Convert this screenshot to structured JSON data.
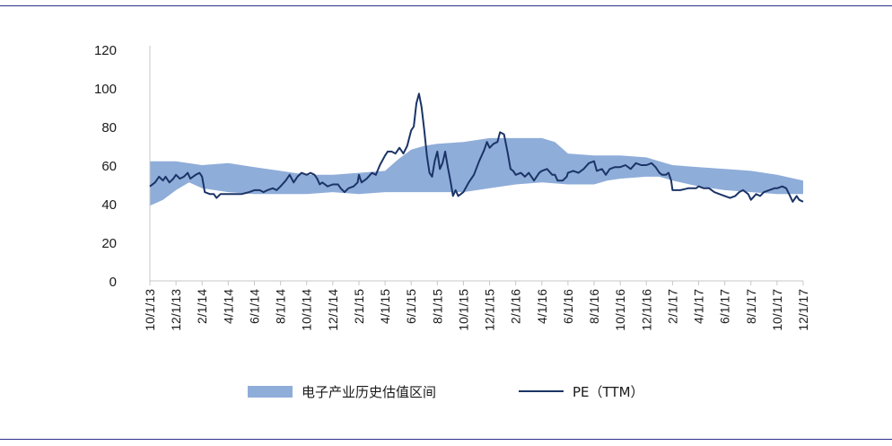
{
  "chart_data": {
    "type": "area",
    "title": "",
    "xlabel": "",
    "ylabel": "",
    "ylim": [
      0,
      120
    ],
    "yticks": [
      0,
      20,
      40,
      60,
      80,
      100,
      120
    ],
    "grid": false,
    "legend_position": "bottom",
    "x_tick_labels": [
      "10/1/13",
      "12/1/13",
      "2/1/14",
      "4/1/14",
      "6/1/14",
      "8/1/14",
      "10/1/14",
      "12/1/14",
      "2/1/15",
      "4/1/15",
      "6/1/15",
      "8/1/15",
      "10/1/15",
      "12/1/15",
      "2/1/16",
      "4/1/16",
      "6/1/16",
      "8/1/16",
      "10/1/16",
      "12/1/16",
      "2/1/17",
      "4/1/17",
      "6/1/17",
      "8/1/17",
      "10/1/17",
      "12/1/17"
    ],
    "band": {
      "name": "电子产业历史估值区间",
      "color": "#8fadd9",
      "upper": [
        [
          0,
          62
        ],
        [
          1,
          62
        ],
        [
          2,
          60
        ],
        [
          3,
          61
        ],
        [
          4,
          59
        ],
        [
          5,
          57
        ],
        [
          6,
          55
        ],
        [
          7,
          55
        ],
        [
          8,
          56
        ],
        [
          9,
          57
        ],
        [
          9.5,
          63
        ],
        [
          10,
          68
        ],
        [
          10.5,
          70
        ],
        [
          11,
          71
        ],
        [
          12,
          72
        ],
        [
          13,
          74
        ],
        [
          14,
          74
        ],
        [
          15,
          74
        ],
        [
          15.5,
          72
        ],
        [
          16,
          66
        ],
        [
          17,
          65
        ],
        [
          18,
          65
        ],
        [
          19,
          64
        ],
        [
          19.5,
          62
        ],
        [
          20,
          60
        ],
        [
          21,
          59
        ],
        [
          22,
          58
        ],
        [
          23,
          57
        ],
        [
          24,
          55
        ],
        [
          25,
          52
        ]
      ],
      "lower": [
        [
          0,
          39
        ],
        [
          0.5,
          42
        ],
        [
          1,
          47
        ],
        [
          1.5,
          51
        ],
        [
          2,
          48
        ],
        [
          3,
          46
        ],
        [
          4,
          45
        ],
        [
          5,
          45
        ],
        [
          6,
          45
        ],
        [
          7,
          46
        ],
        [
          8,
          45
        ],
        [
          9,
          46
        ],
        [
          10,
          46
        ],
        [
          11,
          46
        ],
        [
          12,
          46
        ],
        [
          13,
          48
        ],
        [
          14,
          50
        ],
        [
          15,
          51
        ],
        [
          16,
          50
        ],
        [
          17,
          50
        ],
        [
          17.5,
          52
        ],
        [
          18,
          53
        ],
        [
          19,
          54
        ],
        [
          19.5,
          54
        ],
        [
          20,
          52
        ],
        [
          21,
          49
        ],
        [
          22,
          47
        ],
        [
          23,
          46
        ],
        [
          24,
          45
        ],
        [
          25,
          45
        ]
      ]
    },
    "series": [
      {
        "name": "PE（TTM）",
        "color": "#1b3467",
        "points": [
          [
            0,
            49
          ],
          [
            0.2,
            51
          ],
          [
            0.35,
            54
          ],
          [
            0.5,
            52
          ],
          [
            0.6,
            54
          ],
          [
            0.75,
            51
          ],
          [
            0.9,
            53
          ],
          [
            1,
            55
          ],
          [
            1.15,
            53
          ],
          [
            1.3,
            54
          ],
          [
            1.45,
            56
          ],
          [
            1.55,
            53
          ],
          [
            1.75,
            55
          ],
          [
            1.9,
            56
          ],
          [
            2,
            54
          ],
          [
            2.1,
            46
          ],
          [
            2.3,
            45
          ],
          [
            2.45,
            45
          ],
          [
            2.55,
            43
          ],
          [
            2.7,
            45
          ],
          [
            3,
            45
          ],
          [
            3.2,
            45
          ],
          [
            3.5,
            45
          ],
          [
            3.8,
            46
          ],
          [
            4,
            47
          ],
          [
            4.2,
            47
          ],
          [
            4.35,
            46
          ],
          [
            4.5,
            47
          ],
          [
            4.7,
            48
          ],
          [
            4.85,
            47
          ],
          [
            5,
            49
          ],
          [
            5.2,
            52
          ],
          [
            5.35,
            55
          ],
          [
            5.5,
            51
          ],
          [
            5.65,
            54
          ],
          [
            5.8,
            56
          ],
          [
            6,
            55
          ],
          [
            6.15,
            56
          ],
          [
            6.3,
            55
          ],
          [
            6.4,
            53
          ],
          [
            6.5,
            50
          ],
          [
            6.6,
            51
          ],
          [
            6.8,
            49
          ],
          [
            7,
            50
          ],
          [
            7.2,
            50
          ],
          [
            7.3,
            48
          ],
          [
            7.45,
            46
          ],
          [
            7.6,
            48
          ],
          [
            7.8,
            49
          ],
          [
            7.95,
            51
          ],
          [
            8,
            55
          ],
          [
            8.1,
            51
          ],
          [
            8.3,
            53
          ],
          [
            8.5,
            56
          ],
          [
            8.65,
            55
          ],
          [
            8.8,
            60
          ],
          [
            9,
            65
          ],
          [
            9.1,
            67
          ],
          [
            9.25,
            67
          ],
          [
            9.4,
            66
          ],
          [
            9.55,
            69
          ],
          [
            9.7,
            66
          ],
          [
            9.85,
            70
          ],
          [
            10,
            78
          ],
          [
            10.1,
            80
          ],
          [
            10.2,
            92
          ],
          [
            10.3,
            97
          ],
          [
            10.4,
            90
          ],
          [
            10.5,
            78
          ],
          [
            10.6,
            65
          ],
          [
            10.7,
            56
          ],
          [
            10.8,
            54
          ],
          [
            10.9,
            62
          ],
          [
            11,
            67
          ],
          [
            11.1,
            58
          ],
          [
            11.2,
            61
          ],
          [
            11.3,
            67
          ],
          [
            11.4,
            59
          ],
          [
            11.5,
            52
          ],
          [
            11.6,
            44
          ],
          [
            11.7,
            47
          ],
          [
            11.8,
            44
          ],
          [
            12,
            46
          ],
          [
            12.2,
            51
          ],
          [
            12.4,
            55
          ],
          [
            12.6,
            62
          ],
          [
            12.8,
            68
          ],
          [
            12.9,
            72
          ],
          [
            13,
            69
          ],
          [
            13.15,
            71
          ],
          [
            13.3,
            72
          ],
          [
            13.4,
            77
          ],
          [
            13.55,
            76
          ],
          [
            13.7,
            66
          ],
          [
            13.8,
            58
          ],
          [
            13.9,
            57
          ],
          [
            14,
            55
          ],
          [
            14.2,
            56
          ],
          [
            14.35,
            54
          ],
          [
            14.5,
            56
          ],
          [
            14.7,
            52
          ],
          [
            14.9,
            56
          ],
          [
            15,
            57
          ],
          [
            15.2,
            58
          ],
          [
            15.4,
            55
          ],
          [
            15.5,
            55
          ],
          [
            15.6,
            52
          ],
          [
            15.8,
            52
          ],
          [
            15.95,
            54
          ],
          [
            16,
            56
          ],
          [
            16.2,
            57
          ],
          [
            16.4,
            56
          ],
          [
            16.6,
            58
          ],
          [
            16.8,
            61
          ],
          [
            17,
            62
          ],
          [
            17.1,
            57
          ],
          [
            17.3,
            58
          ],
          [
            17.45,
            55
          ],
          [
            17.6,
            58
          ],
          [
            17.8,
            59
          ],
          [
            18,
            59
          ],
          [
            18.2,
            60
          ],
          [
            18.4,
            58
          ],
          [
            18.6,
            61
          ],
          [
            18.8,
            60
          ],
          [
            19,
            60
          ],
          [
            19.2,
            61
          ],
          [
            19.35,
            59
          ],
          [
            19.5,
            56
          ],
          [
            19.6,
            55
          ],
          [
            19.75,
            55
          ],
          [
            19.85,
            56
          ],
          [
            19.95,
            52
          ],
          [
            20,
            47
          ],
          [
            20.3,
            47
          ],
          [
            20.6,
            48
          ],
          [
            20.9,
            48
          ],
          [
            21,
            49
          ],
          [
            21.2,
            48
          ],
          [
            21.4,
            48
          ],
          [
            21.6,
            46
          ],
          [
            21.8,
            45
          ],
          [
            22,
            44
          ],
          [
            22.2,
            43
          ],
          [
            22.4,
            44
          ],
          [
            22.55,
            46
          ],
          [
            22.7,
            47
          ],
          [
            22.8,
            46
          ],
          [
            22.9,
            45
          ],
          [
            23,
            42
          ],
          [
            23.2,
            45
          ],
          [
            23.35,
            44
          ],
          [
            23.5,
            46
          ],
          [
            23.7,
            47
          ],
          [
            23.9,
            48
          ],
          [
            24,
            48
          ],
          [
            24.2,
            49
          ],
          [
            24.35,
            48
          ],
          [
            24.5,
            44
          ],
          [
            24.6,
            41
          ],
          [
            24.75,
            44
          ],
          [
            24.85,
            42
          ],
          [
            25,
            41
          ]
        ]
      }
    ]
  }
}
